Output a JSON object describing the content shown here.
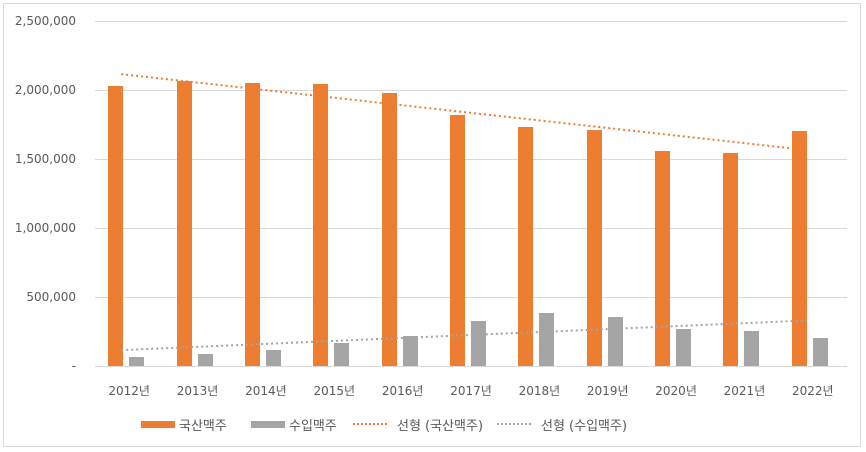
{
  "chart_data": {
    "type": "bar",
    "title": "",
    "xlabel": "",
    "ylabel": "",
    "ylim": [
      0,
      2500000
    ],
    "y_ticks": [
      "-",
      "500,000",
      "1,000,000",
      "1,500,000",
      "2,000,000",
      "2,500,000"
    ],
    "grid": true,
    "legend_position": "bottom",
    "categories": [
      "2012년",
      "2013년",
      "2014년",
      "2015년",
      "2016년",
      "2017년",
      "2018년",
      "2019년",
      "2020년",
      "2021년",
      "2022년"
    ],
    "series": [
      {
        "name": "국산맥주",
        "type": "bar",
        "color": "#ed7d31",
        "values": [
          2030000,
          2065000,
          2050000,
          2040000,
          1975000,
          1820000,
          1735000,
          1710000,
          1560000,
          1540000,
          1700000
        ]
      },
      {
        "name": "수입맥주",
        "type": "bar",
        "color": "#a5a5a5",
        "values": [
          65000,
          87000,
          116000,
          167000,
          217000,
          326000,
          384000,
          355000,
          268000,
          254000,
          203000
        ]
      },
      {
        "name": "선형 (국산맥주)",
        "type": "linear-trendline",
        "color": "#ed7d31",
        "start": 2115000,
        "end": 1565000
      },
      {
        "name": "선형 (수입맥주)",
        "type": "linear-trendline",
        "color": "#a5a5a5",
        "start": 115000,
        "end": 330000
      }
    ]
  },
  "legend": {
    "items": [
      {
        "label": "국산맥주"
      },
      {
        "label": "수입맥주"
      },
      {
        "label": "선형 (국산맥주)"
      },
      {
        "label": "선형 (수입맥주)"
      }
    ]
  }
}
